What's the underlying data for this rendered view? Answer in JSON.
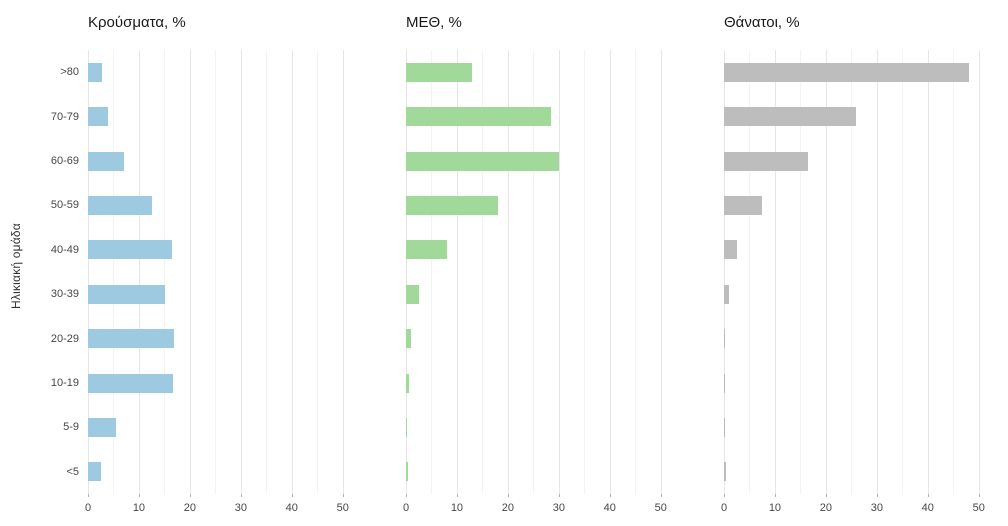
{
  "chart_data": {
    "type": "bar",
    "orientation": "horizontal",
    "ylabel": "Ηλικιακή ομάδα",
    "xlabel": "",
    "categories": [
      ">80",
      "70-79",
      "60-69",
      "50-59",
      "40-49",
      "30-39",
      "20-29",
      "10-19",
      "5-9",
      "<5"
    ],
    "xlim": [
      0,
      53
    ],
    "x_ticks": [
      0,
      10,
      20,
      30,
      40,
      50
    ],
    "x_minor_ticks": [
      5,
      15,
      25,
      35,
      45
    ],
    "grid": true,
    "legend": "none",
    "panels": [
      {
        "title": "Κρούσματα, %",
        "color": "#9ECAE1",
        "values": [
          2.8,
          4,
          7,
          12.5,
          16.5,
          15.2,
          16.8,
          16.6,
          5.5,
          2.5
        ]
      },
      {
        "title": "ΜΕΘ, %",
        "color": "#A1D99B",
        "values": [
          13,
          28.5,
          30,
          18,
          8,
          2.5,
          1,
          0.5,
          0.2,
          0.3
        ]
      },
      {
        "title": "Θάνατοι, %",
        "color": "#BDBDBD",
        "values": [
          48,
          26,
          16.5,
          7.5,
          2.5,
          1,
          0.2,
          0.15,
          0.05,
          0.3
        ]
      }
    ]
  }
}
